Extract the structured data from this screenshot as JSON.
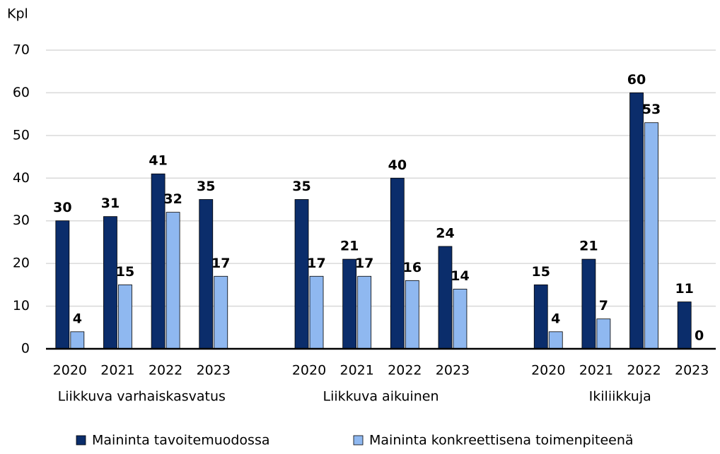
{
  "chart_data": {
    "type": "bar",
    "y_label": "Kpl",
    "groups": [
      "Liikkuva varhaiskasvatus",
      "Liikkuva aikuinen",
      "Ikiliikkuja"
    ],
    "categories": [
      "2020",
      "2021",
      "2022",
      "2023",
      "2020",
      "2021",
      "2022",
      "2023",
      "2020",
      "2021",
      "2022",
      "2023"
    ],
    "series": [
      {
        "name": "Maininta tavoitemuodossa",
        "color": "#0b2d6b",
        "values": [
          30,
          31,
          41,
          35,
          35,
          21,
          40,
          24,
          15,
          21,
          60,
          11
        ]
      },
      {
        "name": "Maininta konkreettisena toimenpiteenä",
        "color": "#8fb8f0",
        "values": [
          4,
          15,
          32,
          17,
          17,
          17,
          16,
          14,
          4,
          7,
          53,
          0
        ]
      }
    ],
    "ylim": [
      0,
      70
    ],
    "yticks": [
      0,
      10,
      20,
      30,
      40,
      50,
      60,
      70
    ],
    "grid": true,
    "legend": "bottom"
  }
}
